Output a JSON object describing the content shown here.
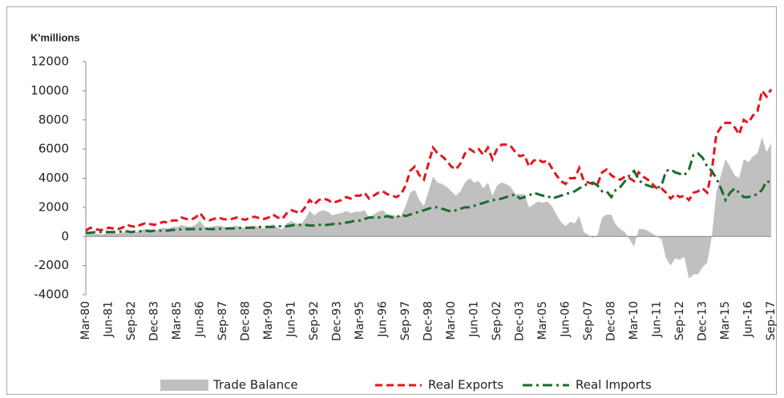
{
  "chart_data": {
    "type": "line",
    "ylabel": "K'millions",
    "categories": [
      "Mar-80",
      null,
      null,
      null,
      null,
      "Jun-81",
      null,
      null,
      null,
      null,
      "Sep-82",
      null,
      null,
      null,
      null,
      "Dec-83",
      null,
      null,
      null,
      null,
      "Mar-85",
      null,
      null,
      null,
      null,
      "Jun-86",
      null,
      null,
      null,
      null,
      "Sep-87",
      null,
      null,
      null,
      null,
      "Dec-88",
      null,
      null,
      null,
      null,
      "Mar-90",
      null,
      null,
      null,
      null,
      "Jun-91",
      null,
      null,
      null,
      null,
      "Sep-92",
      null,
      null,
      null,
      null,
      "Dec-93",
      null,
      null,
      null,
      null,
      "Mar-95",
      null,
      null,
      null,
      null,
      "Jun-96",
      null,
      null,
      null,
      null,
      "Sep-97",
      null,
      null,
      null,
      null,
      "Dec-98",
      null,
      null,
      null,
      null,
      "Mar-00",
      null,
      null,
      null,
      null,
      "Jun-01",
      null,
      null,
      null,
      null,
      "Sep-02",
      null,
      null,
      null,
      null,
      "Dec-03",
      null,
      null,
      null,
      null,
      "Mar-05",
      null,
      null,
      null,
      null,
      "Jun-06",
      null,
      null,
      null,
      null,
      "Sep-07",
      null,
      null,
      null,
      null,
      "Dec-08",
      null,
      null,
      null,
      null,
      "Mar-10",
      null,
      null,
      null,
      null,
      "Jun-11",
      null,
      null,
      null,
      null,
      "Sep-12",
      null,
      null,
      null,
      null,
      "Dec-13",
      null,
      null,
      null,
      null,
      "Mar-15",
      null,
      null,
      null,
      null,
      "Jun-16",
      null,
      null,
      null,
      null,
      "Sep-17"
    ],
    "series": [
      {
        "name": "Trade Balance",
        "color": "#c0c0c0",
        "style": "area",
        "values": [
          200,
          300,
          200,
          150,
          150,
          300,
          250,
          200,
          250,
          450,
          400,
          300,
          450,
          500,
          500,
          400,
          500,
          600,
          550,
          650,
          650,
          800,
          700,
          650,
          800,
          1100,
          650,
          600,
          700,
          750,
          700,
          600,
          650,
          750,
          600,
          550,
          700,
          750,
          600,
          550,
          650,
          850,
          600,
          500,
          900,
          1050,
          900,
          800,
          1200,
          1750,
          1450,
          1700,
          1800,
          1700,
          1450,
          1550,
          1600,
          1750,
          1600,
          1700,
          1700,
          1800,
          1300,
          1500,
          1700,
          1800,
          1500,
          1500,
          1400,
          1400,
          2100,
          3000,
          3200,
          2500,
          2100,
          3100,
          4100,
          3700,
          3600,
          3400,
          3100,
          2800,
          3100,
          3700,
          4000,
          3700,
          3800,
          3300,
          3700,
          2800,
          3500,
          3700,
          3600,
          3400,
          2900,
          2900,
          2900,
          2000,
          2200,
          2400,
          2300,
          2400,
          2100,
          1500,
          1000,
          700,
          1000,
          900,
          1400,
          300,
          100,
          -100,
          100,
          1300,
          1500,
          1500,
          800,
          500,
          300,
          -200,
          -700,
          500,
          500,
          400,
          200,
          0,
          -200,
          -1500,
          -2000,
          -1500,
          -1600,
          -1400,
          -2900,
          -2600,
          -2600,
          -2100,
          -1800,
          0,
          3000,
          4200,
          5300,
          4800,
          4200,
          4000,
          5300,
          5100,
          5500,
          5700,
          6800,
          5800,
          6400
        ]
      },
      {
        "name": "Real Exports",
        "color": "#e3161e",
        "style": "dash",
        "values": [
          400,
          600,
          500,
          450,
          450,
          600,
          550,
          500,
          600,
          800,
          700,
          650,
          800,
          900,
          850,
          800,
          900,
          1000,
          950,
          1100,
          1100,
          1300,
          1200,
          1150,
          1300,
          1600,
          1200,
          1100,
          1200,
          1300,
          1200,
          1150,
          1200,
          1300,
          1200,
          1150,
          1300,
          1350,
          1250,
          1200,
          1300,
          1500,
          1300,
          1200,
          1600,
          1800,
          1700,
          1600,
          2000,
          2500,
          2200,
          2500,
          2600,
          2500,
          2300,
          2400,
          2500,
          2700,
          2600,
          2800,
          2800,
          3000,
          2600,
          2800,
          3000,
          3100,
          2900,
          2800,
          2700,
          2900,
          3500,
          4500,
          4800,
          4200,
          3900,
          5000,
          6100,
          5700,
          5500,
          5200,
          4800,
          4600,
          5000,
          5700,
          6000,
          5800,
          6000,
          5600,
          6100,
          5300,
          6000,
          6300,
          6300,
          6200,
          5800,
          5500,
          5600,
          4800,
          5200,
          5300,
          5100,
          5200,
          4700,
          4200,
          3800,
          3600,
          4000,
          4000,
          4700,
          3800,
          3700,
          3600,
          3600,
          4400,
          4600,
          4200,
          4000,
          3900,
          4100,
          4000,
          3800,
          4400,
          4100,
          3900,
          3600,
          3300,
          3300,
          3000,
          2600,
          2900,
          2700,
          2800,
          2500,
          3000,
          3100,
          3300,
          3000,
          4500,
          7000,
          7500,
          7800,
          7800,
          7500,
          7000,
          8000,
          7800,
          8300,
          8600,
          10000,
          9600,
          10100
        ]
      },
      {
        "name": "Real Imports",
        "color": "#1b6b2f",
        "style": "dashdot",
        "values": [
          250,
          250,
          300,
          300,
          300,
          300,
          300,
          300,
          350,
          350,
          300,
          350,
          350,
          400,
          350,
          400,
          400,
          400,
          400,
          450,
          450,
          500,
          500,
          500,
          500,
          500,
          550,
          500,
          500,
          550,
          500,
          550,
          550,
          550,
          600,
          600,
          600,
          600,
          650,
          650,
          650,
          650,
          700,
          700,
          700,
          750,
          800,
          800,
          800,
          750,
          750,
          800,
          800,
          800,
          850,
          850,
          900,
          950,
          1000,
          1100,
          1100,
          1200,
          1300,
          1300,
          1300,
          1300,
          1400,
          1300,
          1300,
          1500,
          1400,
          1500,
          1600,
          1700,
          1800,
          1900,
          2000,
          2000,
          1900,
          1800,
          1700,
          1800,
          1900,
          2000,
          2000,
          2100,
          2200,
          2300,
          2400,
          2500,
          2500,
          2600,
          2700,
          2800,
          2900,
          2600,
          2700,
          2800,
          3000,
          2900,
          2800,
          2800,
          2600,
          2700,
          2800,
          2900,
          3000,
          3100,
          3300,
          3500,
          3600,
          3700,
          3500,
          3100,
          3100,
          2700,
          3200,
          3400,
          3800,
          4200,
          4500,
          3900,
          3600,
          3500,
          3400,
          3300,
          3500,
          4500,
          4600,
          4400,
          4300,
          4200,
          4600,
          5600,
          5700,
          5400,
          4800,
          4500,
          4000,
          3300,
          2500,
          3000,
          3300,
          3000,
          2700,
          2700,
          2800,
          2900,
          3200,
          3800,
          3700
        ]
      }
    ],
    "ylim": [
      -4000,
      12000
    ],
    "yticks": [
      -4000,
      -2000,
      0,
      2000,
      4000,
      6000,
      8000,
      10000,
      12000
    ],
    "grid": false,
    "legend": "bottom"
  }
}
